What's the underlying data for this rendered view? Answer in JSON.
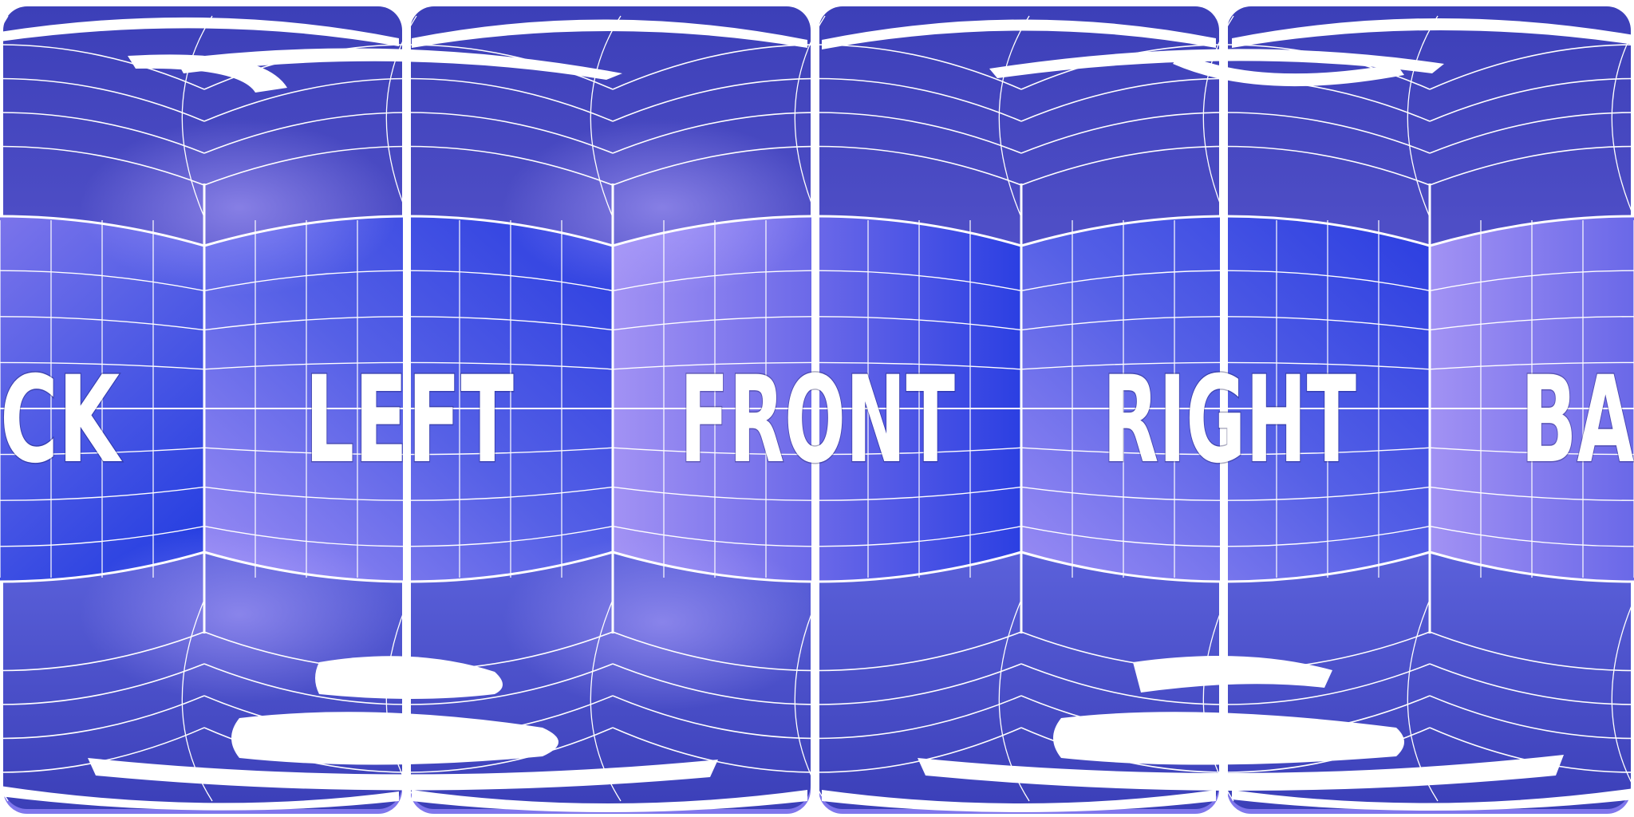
{
  "panorama": {
    "face_labels": {
      "back_left": "CK",
      "left": "LEFT",
      "front": "FRONT",
      "right": "RIGHT",
      "back_right": "BA",
      "bottom": "BO"
    }
  },
  "colors": {
    "grid_line": "#ffffff",
    "base_blue": "#4a55e0",
    "deep_blue": "#0a2fd8",
    "violet": "#8a6de8",
    "lavender": "#a9a0f8"
  }
}
